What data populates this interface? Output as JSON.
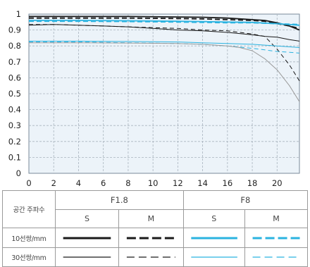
{
  "chart_data": {
    "type": "line",
    "title": "",
    "xlabel": "",
    "ylabel": "",
    "xlim": [
      0,
      21.8
    ],
    "ylim": [
      0,
      1
    ],
    "x_ticks": [
      "0",
      "2",
      "4",
      "6",
      "8",
      "10",
      "12",
      "14",
      "16",
      "18",
      "20"
    ],
    "y_ticks": [
      "0",
      "0.1",
      "0.2",
      "0.3",
      "0.4",
      "0.5",
      "0.6",
      "0.7",
      "0.8",
      "0.9",
      "1"
    ],
    "grid": true,
    "series": [
      {
        "color": "#1a1a1a",
        "weight": "thick",
        "dash": "solid",
        "points": [
          [
            0,
            0.985
          ],
          [
            4,
            0.985
          ],
          [
            8,
            0.985
          ],
          [
            12,
            0.982
          ],
          [
            14,
            0.98
          ],
          [
            16,
            0.975
          ],
          [
            18,
            0.965
          ],
          [
            19,
            0.96
          ],
          [
            20,
            0.945
          ],
          [
            21,
            0.925
          ],
          [
            21.8,
            0.9
          ]
        ]
      },
      {
        "color": "#1a1a1a",
        "weight": "thick",
        "dash": "dashed",
        "points": [
          [
            0,
            0.975
          ],
          [
            4,
            0.975
          ],
          [
            8,
            0.975
          ],
          [
            12,
            0.972
          ],
          [
            14,
            0.97
          ],
          [
            16,
            0.965
          ],
          [
            18,
            0.96
          ],
          [
            19,
            0.955
          ],
          [
            20,
            0.94
          ],
          [
            21,
            0.925
          ],
          [
            21.8,
            0.91
          ]
        ]
      },
      {
        "color": "#1a1a1a",
        "weight": "thin",
        "dash": "solid",
        "points": [
          [
            0,
            0.93
          ],
          [
            2,
            0.935
          ],
          [
            4,
            0.93
          ],
          [
            6,
            0.925
          ],
          [
            8,
            0.92
          ],
          [
            10,
            0.91
          ],
          [
            12,
            0.9
          ],
          [
            14,
            0.895
          ],
          [
            16,
            0.885
          ],
          [
            18,
            0.87
          ],
          [
            19,
            0.86
          ],
          [
            20,
            0.855
          ],
          [
            21,
            0.84
          ],
          [
            21.8,
            0.83
          ]
        ]
      },
      {
        "color": "#1a1a1a",
        "weight": "thin",
        "dash": "dashed",
        "points": [
          [
            0,
            0.935
          ],
          [
            2,
            0.935
          ],
          [
            4,
            0.93
          ],
          [
            6,
            0.925
          ],
          [
            8,
            0.92
          ],
          [
            10,
            0.915
          ],
          [
            12,
            0.91
          ],
          [
            14,
            0.9
          ],
          [
            16,
            0.895
          ],
          [
            17,
            0.885
          ],
          [
            18,
            0.875
          ],
          [
            19,
            0.86
          ],
          [
            20,
            0.78
          ],
          [
            21,
            0.68
          ],
          [
            21.8,
            0.58
          ]
        ]
      },
      {
        "color": "#2bb3e0",
        "weight": "thick",
        "dash": "solid",
        "points": [
          [
            0,
            0.96
          ],
          [
            4,
            0.96
          ],
          [
            8,
            0.958
          ],
          [
            12,
            0.955
          ],
          [
            14,
            0.953
          ],
          [
            16,
            0.95
          ],
          [
            18,
            0.948
          ],
          [
            20,
            0.94
          ],
          [
            21.8,
            0.93
          ]
        ]
      },
      {
        "color": "#2bb3e0",
        "weight": "thick",
        "dash": "dashed",
        "points": [
          [
            0,
            0.955
          ],
          [
            4,
            0.955
          ],
          [
            8,
            0.953
          ],
          [
            12,
            0.95
          ],
          [
            14,
            0.948
          ],
          [
            16,
            0.945
          ],
          [
            18,
            0.945
          ],
          [
            20,
            0.94
          ],
          [
            21.8,
            0.935
          ]
        ]
      },
      {
        "color": "#2bb3e0",
        "weight": "thin",
        "dash": "solid",
        "points": [
          [
            0,
            0.83
          ],
          [
            4,
            0.83
          ],
          [
            8,
            0.828
          ],
          [
            12,
            0.825
          ],
          [
            14,
            0.82
          ],
          [
            16,
            0.815
          ],
          [
            18,
            0.81
          ],
          [
            20,
            0.8
          ],
          [
            21.8,
            0.79
          ]
        ]
      },
      {
        "color": "#2bb3e0",
        "weight": "thin",
        "dash": "dashed",
        "points": [
          [
            0,
            0.825
          ],
          [
            4,
            0.825
          ],
          [
            8,
            0.82
          ],
          [
            12,
            0.815
          ],
          [
            14,
            0.81
          ],
          [
            16,
            0.8
          ],
          [
            18,
            0.785
          ],
          [
            19,
            0.775
          ],
          [
            20,
            0.765
          ],
          [
            21,
            0.76
          ],
          [
            21.8,
            0.755
          ]
        ]
      },
      {
        "color": "#9a9a9a",
        "weight": "thin",
        "dash": "solid",
        "points": [
          [
            0,
            0.82
          ],
          [
            4,
            0.82
          ],
          [
            8,
            0.818
          ],
          [
            12,
            0.815
          ],
          [
            14,
            0.81
          ],
          [
            16,
            0.8
          ],
          [
            17,
            0.79
          ],
          [
            18,
            0.77
          ],
          [
            19,
            0.72
          ],
          [
            20,
            0.65
          ],
          [
            21,
            0.55
          ],
          [
            21.8,
            0.45
          ]
        ]
      }
    ]
  },
  "legend": {
    "row_header": "공간 주파수",
    "groups": [
      "F1.8",
      "F8"
    ],
    "sub_headers": [
      "S",
      "M",
      "S",
      "M"
    ],
    "rows": [
      {
        "label": "10선쌍/mm",
        "weight": "thick"
      },
      {
        "label": "30선쌍/mm",
        "weight": "thin"
      }
    ],
    "colors": {
      "f18": "#1a1a1a",
      "f8": "#2bb3e0"
    }
  }
}
